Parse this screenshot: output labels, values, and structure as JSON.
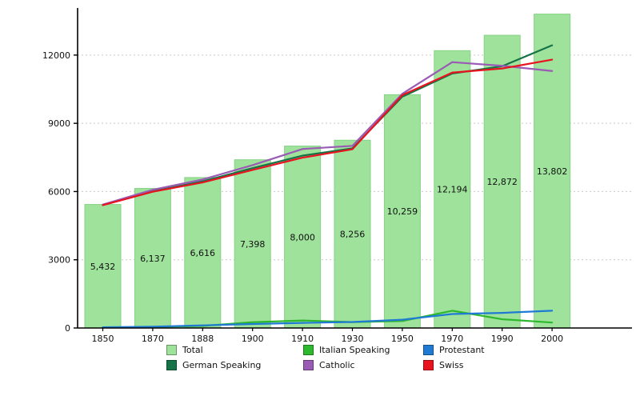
{
  "chart": {
    "background": "#ffffff",
    "axis_color": "#000000",
    "grid_color": "#c9c9c9",
    "text_color": "#111111"
  },
  "chart_data": {
    "type": "bar+line",
    "title": "",
    "xlabel": "",
    "ylabel": "",
    "categories": [
      "1850",
      "1870",
      "1888",
      "1900",
      "1910",
      "1930",
      "1950",
      "1970",
      "1990",
      "2000"
    ],
    "ylim": [
      0,
      14000
    ],
    "yticks": [
      0,
      3000,
      6000,
      9000,
      12000
    ],
    "ytick_labels": [
      "0",
      "3000",
      "6000",
      "9000",
      "12000"
    ],
    "grid": true,
    "bar_series": {
      "name": "Total",
      "color": "#9fe29b",
      "edge_color": "#85d385",
      "values": [
        5432,
        6137,
        6616,
        7398,
        8000,
        8256,
        10259,
        12194,
        12872,
        13802
      ],
      "value_labels": [
        "5,432",
        "6,137",
        "6,616",
        "7,398",
        "8,000",
        "8,256",
        "10,259",
        "12,194",
        "12,872",
        "13,802"
      ]
    },
    "line_series": [
      {
        "name": "Italian Speaking",
        "color": "#2eb82e",
        "values": [
          20,
          45,
          90,
          255,
          330,
          260,
          305,
          760,
          385,
          240
        ]
      },
      {
        "name": "Protestant",
        "color": "#1f7ad4",
        "values": [
          30,
          60,
          115,
          175,
          225,
          265,
          365,
          615,
          665,
          760
        ]
      },
      {
        "name": "German Speaking",
        "color": "#157347",
        "values": [
          5420,
          6010,
          6450,
          7030,
          7580,
          7900,
          10170,
          11190,
          11510,
          12430
        ]
      },
      {
        "name": "Catholic",
        "color": "#9a5bb5",
        "values": [
          5430,
          6080,
          6530,
          7160,
          7870,
          8010,
          10300,
          11690,
          11530,
          11300
        ]
      },
      {
        "name": "Swiss",
        "color": "#e8131e",
        "values": [
          5400,
          5990,
          6400,
          6950,
          7490,
          7860,
          10240,
          11230,
          11410,
          11800
        ]
      }
    ],
    "legend_position": "bottom",
    "legend": [
      {
        "label": "Total",
        "color": "#9fe29b"
      },
      {
        "label": "Italian Speaking",
        "color": "#2eb82e"
      },
      {
        "label": "Protestant",
        "color": "#1f7ad4"
      },
      {
        "label": "German Speaking",
        "color": "#157347"
      },
      {
        "label": "Catholic",
        "color": "#9a5bb5"
      },
      {
        "label": "Swiss",
        "color": "#e8131e"
      }
    ]
  }
}
